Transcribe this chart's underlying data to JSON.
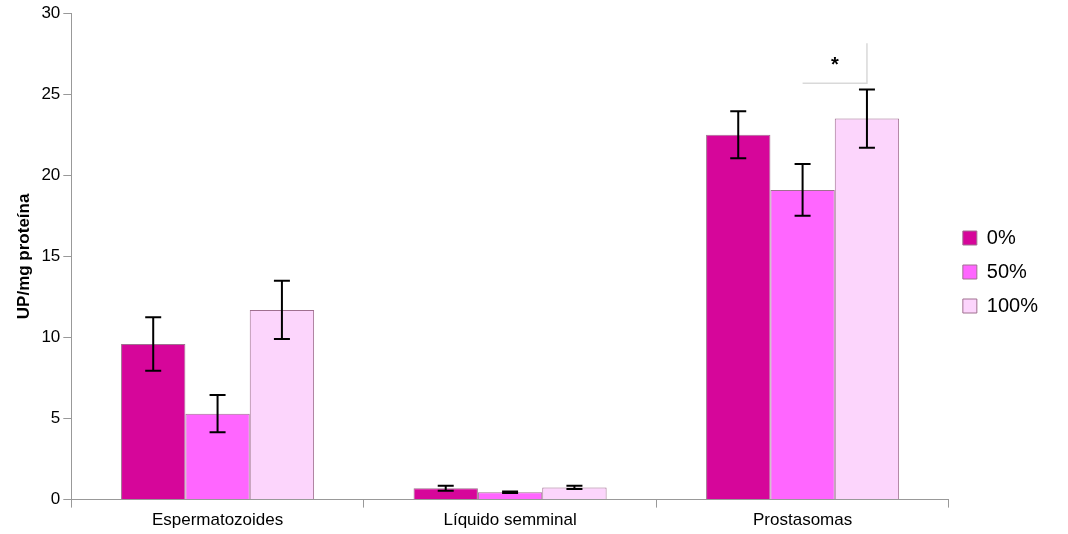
{
  "chart_data": {
    "type": "bar",
    "ylabel": "UP/mg proteína",
    "categories": [
      "Espermatozoides",
      "Líquido semminal",
      "Prostasomas"
    ],
    "series": [
      {
        "name": "0%",
        "color": "#d6069a",
        "values": [
          9.6,
          0.7,
          22.5
        ],
        "errors": [
          1.65,
          0.15,
          1.45
        ]
      },
      {
        "name": "50%",
        "color": "#ff66ff",
        "values": [
          5.3,
          0.45,
          19.1
        ],
        "errors": [
          1.15,
          0.05,
          1.6
        ]
      },
      {
        "name": "100%",
        "color": "#fcd5fc",
        "values": [
          11.7,
          0.75,
          23.5
        ],
        "errors": [
          1.8,
          0.1,
          1.8
        ]
      }
    ],
    "ylim": [
      0,
      30
    ],
    "yticks": [
      0,
      5,
      10,
      15,
      20,
      25,
      30
    ],
    "grid": false,
    "legend": "right",
    "annotations": [
      "*"
    ]
  }
}
